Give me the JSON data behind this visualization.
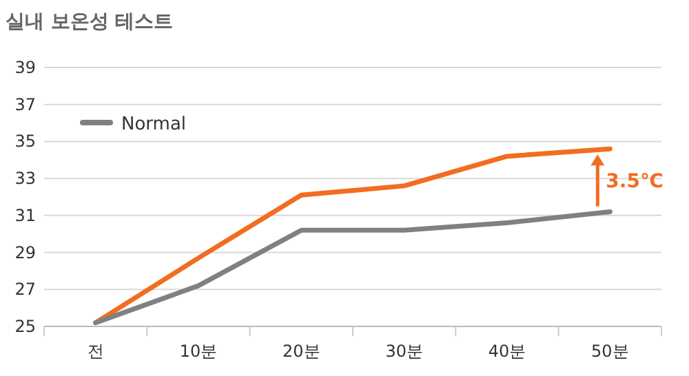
{
  "chart_data": {
    "type": "line",
    "title": "실내 보온성 테스트",
    "categories": [
      "전",
      "10분",
      "20분",
      "30분",
      "40분",
      "50분"
    ],
    "series": [
      {
        "color": "#f26d21",
        "values": [
          25.2,
          28.7,
          32.1,
          32.6,
          34.2,
          34.6
        ]
      },
      {
        "name": "Normal",
        "color": "#808080",
        "values": [
          25.2,
          27.2,
          30.2,
          30.2,
          30.6,
          31.2
        ]
      }
    ],
    "ylim": [
      25,
      39
    ],
    "yticks": [
      25,
      27,
      29,
      31,
      33,
      35,
      37,
      39
    ],
    "grid": "y",
    "legend": "top left",
    "marker": "none",
    "line_style": "solid",
    "annotations": [
      "3.5℃"
    ]
  }
}
